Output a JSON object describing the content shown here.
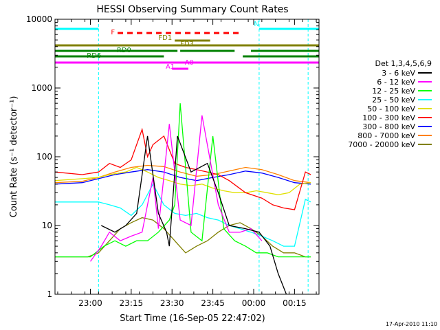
{
  "chart_data": {
    "type": "line",
    "title": "HESSI Observing Summary Count Rates",
    "xlabel": "Start Time (16-Sep-05 22:47:02)",
    "ylabel": "Count Rate (s⁻¹ detector⁻¹)",
    "yscale": "log",
    "ylim": [
      1,
      10000
    ],
    "xlim_minutes_after_start": [
      0,
      97
    ],
    "x_tick_labels": [
      "23:00",
      "23:15",
      "23:30",
      "23:45",
      "00:00",
      "00:15"
    ],
    "x_tick_minutes": [
      13,
      28,
      43,
      58,
      73,
      88
    ],
    "y_tick_labels": [
      "1",
      "10",
      "100",
      "1000",
      "10000"
    ],
    "y_tick_values": [
      1,
      10,
      100,
      1000,
      10000
    ],
    "legend_title": "Det 1,3,4,5,6,9",
    "legend_placement": "right",
    "series": [
      {
        "name": "3 - 6 keV",
        "color": "#000000",
        "x": [
          0,
          13,
          17,
          22,
          26,
          30,
          34,
          38,
          41,
          42,
          45,
          50,
          56,
          60,
          64,
          70,
          75,
          79,
          82,
          85
        ],
        "values": [
          null,
          null,
          10,
          8,
          10,
          15,
          200,
          15,
          8,
          5,
          200,
          60,
          80,
          30,
          10,
          9,
          8,
          5,
          2,
          1
        ]
      },
      {
        "name": "6 - 12 keV",
        "color": "#ff00ff",
        "x": [
          13,
          17,
          20,
          24,
          28,
          32,
          34,
          36,
          38,
          42,
          46,
          50,
          54,
          60,
          64,
          68,
          72,
          76
        ],
        "values": [
          3,
          5,
          8,
          6,
          7,
          8,
          20,
          50,
          9,
          300,
          12,
          10,
          400,
          20,
          8,
          8,
          9,
          6
        ]
      },
      {
        "name": "12 - 25 keV",
        "color": "#00ff00",
        "x": [
          0,
          13,
          18,
          22,
          26,
          30,
          34,
          38,
          42,
          44,
          46,
          50,
          54,
          58,
          62,
          66,
          70,
          74,
          78,
          82,
          86,
          90,
          94
        ],
        "values": [
          3.5,
          3.5,
          5,
          6,
          5,
          6,
          6,
          8,
          12,
          20,
          600,
          8,
          6,
          200,
          9,
          6,
          5,
          4,
          4,
          3.5,
          3.5,
          3.5,
          3.5
        ]
      },
      {
        "name": "25 - 50 keV",
        "color": "#00ffff",
        "x": [
          0,
          10,
          16,
          20,
          24,
          28,
          32,
          36,
          40,
          44,
          48,
          52,
          56,
          60,
          64,
          68,
          72,
          76,
          80,
          84,
          88,
          92,
          94
        ],
        "values": [
          22,
          22,
          22,
          20,
          18,
          14,
          20,
          40,
          20,
          15,
          14,
          15,
          13,
          12,
          10,
          9,
          8,
          7,
          6,
          5,
          5,
          24,
          22
        ]
      },
      {
        "name": "50 - 100 keV",
        "color": "#e0e000",
        "x": [
          0,
          10,
          16,
          20,
          26,
          30,
          34,
          38,
          42,
          46,
          50,
          54,
          58,
          62,
          66,
          70,
          74,
          78,
          82,
          86,
          90,
          94
        ],
        "values": [
          45,
          48,
          50,
          55,
          60,
          70,
          60,
          50,
          45,
          40,
          38,
          40,
          35,
          32,
          30,
          30,
          32,
          30,
          28,
          30,
          40,
          42
        ]
      },
      {
        "name": "100 - 300 keV",
        "color": "#ff0000",
        "x": [
          0,
          10,
          16,
          20,
          24,
          28,
          32,
          34,
          36,
          40,
          44,
          48,
          52,
          56,
          60,
          64,
          70,
          76,
          80,
          84,
          88,
          92,
          94
        ],
        "values": [
          60,
          55,
          60,
          80,
          70,
          90,
          250,
          100,
          150,
          200,
          80,
          70,
          65,
          60,
          55,
          45,
          30,
          25,
          20,
          18,
          17,
          60,
          55
        ]
      },
      {
        "name": "300 - 800 keV",
        "color": "#0000ff",
        "x": [
          0,
          10,
          16,
          22,
          28,
          34,
          40,
          46,
          52,
          58,
          64,
          70,
          76,
          82,
          88,
          94
        ],
        "values": [
          40,
          42,
          48,
          55,
          60,
          65,
          60,
          50,
          45,
          50,
          55,
          62,
          58,
          50,
          42,
          40
        ]
      },
      {
        "name": "800 - 7000 keV",
        "color": "#ff8000",
        "x": [
          0,
          10,
          16,
          22,
          28,
          34,
          40,
          46,
          52,
          58,
          64,
          70,
          76,
          82,
          88,
          94
        ],
        "values": [
          42,
          44,
          50,
          60,
          70,
          75,
          72,
          60,
          52,
          55,
          62,
          70,
          65,
          55,
          45,
          42
        ]
      },
      {
        "name": "7000 - 20000 keV",
        "color": "#808000",
        "x": [
          0,
          6,
          12,
          16,
          20,
          24,
          28,
          32,
          36,
          40,
          44,
          48,
          52,
          56,
          60,
          64,
          68,
          72,
          76,
          80,
          84,
          88,
          92,
          94
        ],
        "values": [
          3.5,
          3.5,
          3.5,
          4,
          6,
          9,
          11,
          13,
          12,
          9,
          6,
          4,
          5,
          6,
          8,
          10,
          11,
          9,
          7,
          5,
          4,
          4,
          3.5,
          3.5
        ]
      }
    ],
    "flag_bars": [
      {
        "label": "N",
        "color": "#00ffff"
      },
      {
        "label": "F",
        "color": "#ff0000"
      },
      {
        "label": "FD1",
        "color": "#808000"
      },
      {
        "label": "FD3",
        "color": "#808000"
      },
      {
        "label": "RD0",
        "color": "#008000"
      },
      {
        "label": "RD6",
        "color": "#008000"
      },
      {
        "label": "A0",
        "color": "#ff00ff"
      },
      {
        "label": "A1",
        "color": "#ff00ff"
      }
    ],
    "vertical_markers_minutes": [
      16,
      75,
      93
    ],
    "footer_date": "17-Apr-2010 11:10"
  }
}
